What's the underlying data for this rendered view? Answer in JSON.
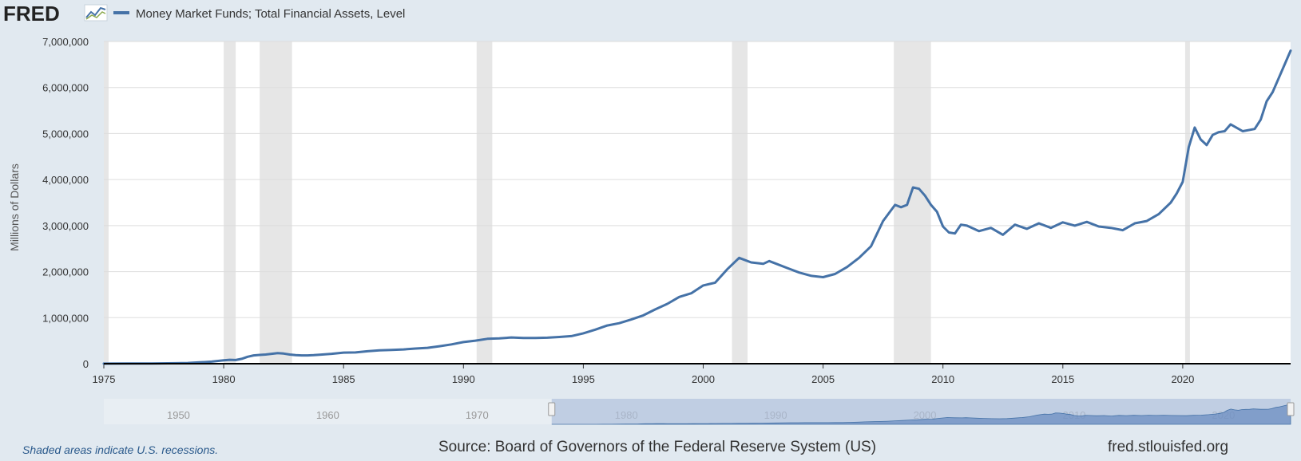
{
  "logo": {
    "text": "FRED"
  },
  "legend": {
    "series_name": "Money Market Funds; Total Financial Assets, Level",
    "color": "#4572a7"
  },
  "footer": {
    "recession_note": "Shaded areas indicate U.S. recessions.",
    "source": "Source: Board of Governors of the Federal Reserve System (US)",
    "site": "fred.stlouisfed.org"
  },
  "navigator": {
    "year_labels": [
      "1950",
      "1960",
      "1970",
      "1980",
      "1990",
      "2000",
      "2010",
      "2020"
    ],
    "selected_range": [
      1975,
      2024.5
    ]
  },
  "colors": {
    "background": "#e1e9f0",
    "plot": "#ffffff",
    "line": "#4572a7",
    "recession": "#e6e6e6",
    "grid": "#dddddd"
  },
  "chart_data": {
    "type": "line",
    "title": "",
    "xlabel": "",
    "ylabel": "Millions of Dollars",
    "xlim": [
      1975,
      2024.5
    ],
    "ylim": [
      0,
      7000000
    ],
    "grid": true,
    "legend_position": "top-left",
    "x_ticks": [
      "1975",
      "1980",
      "1985",
      "1990",
      "1995",
      "2000",
      "2005",
      "2010",
      "2015",
      "2020"
    ],
    "y_ticks": [
      "0",
      "1,000,000",
      "2,000,000",
      "3,000,000",
      "4,000,000",
      "5,000,000",
      "6,000,000",
      "7,000,000"
    ],
    "recessions": [
      [
        1973.9,
        1975.2
      ],
      [
        1980.0,
        1980.5
      ],
      [
        1981.5,
        1982.85
      ],
      [
        1990.55,
        1991.2
      ],
      [
        2001.2,
        2001.85
      ],
      [
        2007.95,
        2009.5
      ],
      [
        2020.1,
        2020.3
      ]
    ],
    "series": [
      {
        "name": "Money Market Funds; Total Financial Assets, Level",
        "x": [
          1975.0,
          1976.0,
          1977.0,
          1978.0,
          1978.5,
          1979.0,
          1979.5,
          1980.0,
          1980.25,
          1980.5,
          1980.75,
          1981.0,
          1981.25,
          1981.5,
          1981.75,
          1982.0,
          1982.25,
          1982.5,
          1982.75,
          1983.0,
          1983.25,
          1983.5,
          1983.75,
          1984.0,
          1984.5,
          1985.0,
          1985.5,
          1986.0,
          1986.5,
          1987.0,
          1987.5,
          1988.0,
          1988.5,
          1989.0,
          1989.5,
          1990.0,
          1990.5,
          1991.0,
          1991.5,
          1992.0,
          1992.5,
          1993.0,
          1993.5,
          1994.0,
          1994.5,
          1995.0,
          1995.5,
          1996.0,
          1996.5,
          1997.0,
          1997.5,
          1998.0,
          1998.5,
          1999.0,
          1999.5,
          2000.0,
          2000.5,
          2001.0,
          2001.5,
          2002.0,
          2002.5,
          2002.75,
          2003.0,
          2003.5,
          2004.0,
          2004.5,
          2005.0,
          2005.5,
          2006.0,
          2006.5,
          2007.0,
          2007.5,
          2008.0,
          2008.25,
          2008.5,
          2008.75,
          2009.0,
          2009.25,
          2009.5,
          2009.75,
          2010.0,
          2010.25,
          2010.5,
          2010.75,
          2011.0,
          2011.5,
          2012.0,
          2012.5,
          2013.0,
          2013.5,
          2014.0,
          2014.5,
          2015.0,
          2015.5,
          2016.0,
          2016.5,
          2017.0,
          2017.5,
          2018.0,
          2018.5,
          2019.0,
          2019.5,
          2019.75,
          2020.0,
          2020.25,
          2020.5,
          2020.75,
          2021.0,
          2021.25,
          2021.5,
          2021.75,
          2022.0,
          2022.5,
          2023.0,
          2023.25,
          2023.5,
          2023.75,
          2024.0,
          2024.25,
          2024.5
        ],
        "values": [
          2000,
          3000,
          4000,
          10000,
          15000,
          30000,
          45000,
          75000,
          85000,
          80000,
          105000,
          150000,
          180000,
          190000,
          200000,
          215000,
          230000,
          220000,
          200000,
          185000,
          180000,
          180000,
          185000,
          195000,
          215000,
          240000,
          245000,
          270000,
          290000,
          300000,
          310000,
          330000,
          345000,
          380000,
          420000,
          470000,
          500000,
          540000,
          550000,
          570000,
          560000,
          560000,
          565000,
          580000,
          600000,
          660000,
          740000,
          830000,
          880000,
          960000,
          1050000,
          1180000,
          1300000,
          1450000,
          1530000,
          1700000,
          1760000,
          2050000,
          2300000,
          2200000,
          2170000,
          2230000,
          2180000,
          2080000,
          1980000,
          1910000,
          1880000,
          1950000,
          2100000,
          2300000,
          2550000,
          3100000,
          3450000,
          3400000,
          3450000,
          3830000,
          3800000,
          3650000,
          3450000,
          3300000,
          2980000,
          2850000,
          2830000,
          3020000,
          3000000,
          2880000,
          2950000,
          2800000,
          3020000,
          2930000,
          3050000,
          2950000,
          3070000,
          3000000,
          3080000,
          2980000,
          2950000,
          2900000,
          3050000,
          3100000,
          3250000,
          3500000,
          3700000,
          3950000,
          4700000,
          5130000,
          4870000,
          4750000,
          4970000,
          5030000,
          5050000,
          5200000,
          5050000,
          5100000,
          5300000,
          5700000,
          5900000,
          6200000,
          6500000,
          6800000
        ]
      }
    ]
  }
}
